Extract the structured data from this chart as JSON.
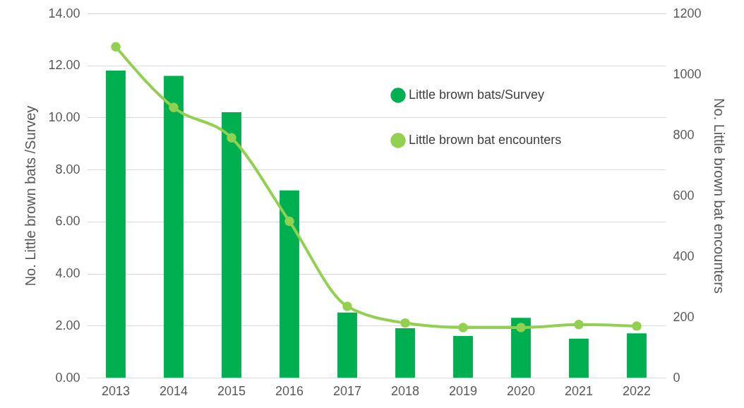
{
  "chart_data": {
    "type": "bar",
    "categories": [
      "2013",
      "2014",
      "2015",
      "2016",
      "2017",
      "2018",
      "2019",
      "2020",
      "2021",
      "2022"
    ],
    "ylabel": "No. Little brown bats /Survey",
    "y2label": "No. Little brown bat encounters",
    "ylim": [
      0,
      14
    ],
    "yticks": [
      {
        "value": 0,
        "label": "0.00"
      },
      {
        "value": 2,
        "label": "2.00"
      },
      {
        "value": 4,
        "label": "4.00"
      },
      {
        "value": 6,
        "label": "6.00"
      },
      {
        "value": 8,
        "label": "8.00"
      },
      {
        "value": 10,
        "label": "10.00"
      },
      {
        "value": 12,
        "label": "12.00"
      },
      {
        "value": 14,
        "label": "14.00"
      }
    ],
    "y2lim": [
      0,
      1200
    ],
    "y2ticks": [
      0,
      200,
      400,
      600,
      800,
      1000,
      1200
    ],
    "grid": "y",
    "legend": "top right",
    "marker": "circle",
    "line_style": "solid",
    "series": [
      {
        "name": "Little brown bats/Survey",
        "color": "#00b050",
        "values": [
          11.8,
          11.6,
          10.2,
          7.2,
          2.5,
          1.9,
          1.6,
          2.3,
          1.5,
          1.7
        ]
      },
      {
        "name": "Little brown bat encounters",
        "type": "line",
        "axis": "y2",
        "color": "#92d050",
        "values": [
          1090,
          890,
          790,
          515,
          235,
          180,
          165,
          165,
          175,
          170
        ]
      }
    ]
  }
}
